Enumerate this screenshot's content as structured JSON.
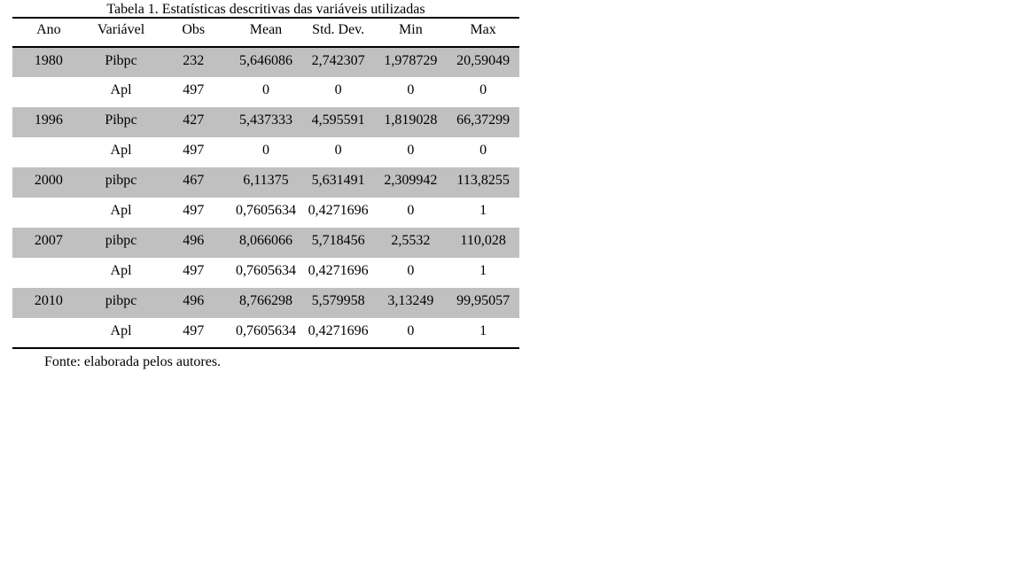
{
  "table1": {
    "title": "Tabela 1. Estatísticas descritivas das variáveis utilizadas",
    "columns": [
      "Ano",
      "Variável",
      "Obs",
      "Mean",
      "Std. Dev.",
      "Min",
      "Max"
    ],
    "rows": [
      {
        "shaded": true,
        "cells": [
          "1980",
          "Pibpc",
          "232",
          "5,646086",
          "2,742307",
          "1,978729",
          "20,59049"
        ]
      },
      {
        "shaded": false,
        "cells": [
          "",
          "Apl",
          "497",
          "0",
          "0",
          "0",
          "0"
        ]
      },
      {
        "shaded": true,
        "cells": [
          "1996",
          "Pibpc",
          "427",
          "5,437333",
          "4,595591",
          "1,819028",
          "66,37299"
        ]
      },
      {
        "shaded": false,
        "cells": [
          "",
          "Apl",
          "497",
          "0",
          "0",
          "0",
          "0"
        ]
      },
      {
        "shaded": true,
        "cells": [
          "2000",
          "pibpc",
          "467",
          "6,11375",
          "5,631491",
          "2,309942",
          "113,8255"
        ]
      },
      {
        "shaded": false,
        "cells": [
          "",
          "Apl",
          "497",
          "0,7605634",
          "0,4271696",
          "0",
          "1"
        ]
      },
      {
        "shaded": true,
        "cells": [
          "2007",
          "pibpc",
          "496",
          "8,066066",
          "5,718456",
          "2,5532",
          "110,028"
        ]
      },
      {
        "shaded": false,
        "cells": [
          "",
          "Apl",
          "497",
          "0,7605634",
          "0,4271696",
          "0",
          "1"
        ]
      },
      {
        "shaded": true,
        "cells": [
          "2010",
          "pibpc",
          "496",
          "8,766298",
          "5,579958",
          "3,13249",
          "99,95057"
        ]
      },
      {
        "shaded": false,
        "cells": [
          "",
          "Apl",
          "497",
          "0,7605634",
          "0,4271696",
          "0",
          "1"
        ]
      }
    ],
    "source_note": "Fonte: elaborada pelos autores."
  },
  "colors": {
    "row_shading": "#c0c0c0",
    "rule": "#000000",
    "text": "#000000",
    "background": "#ffffff"
  }
}
